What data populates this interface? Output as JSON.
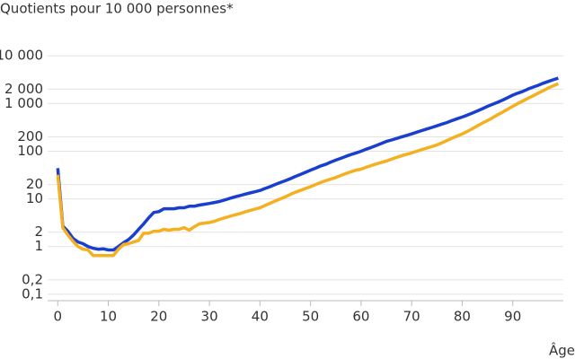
{
  "chart_data": {
    "type": "line",
    "title": "Quotients pour 10 000 personnes*",
    "x_label": "Âge",
    "x": [
      0,
      1,
      2,
      3,
      4,
      5,
      6,
      7,
      8,
      9,
      10,
      11,
      12,
      13,
      14,
      15,
      16,
      17,
      18,
      19,
      20,
      21,
      22,
      23,
      24,
      25,
      26,
      27,
      28,
      29,
      30,
      31,
      32,
      33,
      34,
      35,
      36,
      37,
      38,
      39,
      40,
      41,
      42,
      43,
      44,
      45,
      46,
      47,
      48,
      49,
      50,
      51,
      52,
      53,
      54,
      55,
      56,
      57,
      58,
      59,
      60,
      61,
      62,
      63,
      64,
      65,
      66,
      67,
      68,
      69,
      70,
      71,
      72,
      73,
      74,
      75,
      76,
      77,
      78,
      79,
      80,
      81,
      82,
      83,
      84,
      85,
      86,
      87,
      88,
      89,
      90,
      91,
      92,
      93,
      94,
      95,
      96,
      97,
      98,
      99
    ],
    "series": [
      {
        "color": "#1a3fcf",
        "values": [
          44,
          2.7,
          2.1,
          1.5,
          1.25,
          1.15,
          1,
          0.92,
          0.88,
          0.9,
          0.85,
          0.85,
          1,
          1.2,
          1.4,
          1.75,
          2.3,
          3,
          4,
          5.2,
          5.4,
          6.2,
          6.2,
          6.2,
          6.5,
          6.5,
          7,
          7,
          7.4,
          7.7,
          8,
          8.4,
          8.8,
          9.5,
          10.2,
          11,
          11.7,
          12.5,
          13.3,
          14.1,
          15,
          16.5,
          18,
          20,
          22,
          24,
          26.5,
          29.5,
          32.5,
          36,
          40,
          44,
          49,
          53,
          59,
          65,
          71,
          78,
          85,
          92,
          100,
          110,
          120,
          132,
          145,
          160,
          172,
          185,
          199,
          214,
          230,
          250,
          270,
          292,
          315,
          340,
          370,
          400,
          440,
          480,
          520,
          570,
          630,
          700,
          780,
          870,
          960,
          1060,
          1180,
          1330,
          1500,
          1650,
          1800,
          2000,
          2200,
          2400,
          2650,
          2900,
          3150,
          3400
        ]
      },
      {
        "color": "#f5b021",
        "values": [
          32,
          2.5,
          1.75,
          1.3,
          1,
          0.88,
          0.85,
          0.65,
          0.65,
          0.65,
          0.65,
          0.65,
          0.88,
          1.1,
          1.15,
          1.25,
          1.35,
          1.9,
          1.9,
          2.1,
          2.1,
          2.3,
          2.2,
          2.3,
          2.3,
          2.5,
          2.2,
          2.6,
          3,
          3.1,
          3.2,
          3.4,
          3.7,
          4,
          4.3,
          4.6,
          4.9,
          5.3,
          5.7,
          6.1,
          6.5,
          7.3,
          8.1,
          9,
          10,
          11,
          12.4,
          13.8,
          15,
          16.5,
          18,
          20,
          22,
          24,
          26,
          28,
          31,
          34,
          37,
          40,
          42,
          46,
          50,
          54,
          58,
          62,
          68,
          74,
          80,
          86,
          92,
          100,
          108,
          116,
          125,
          135,
          150,
          168,
          188,
          208,
          230,
          260,
          295,
          340,
          390,
          440,
          500,
          580,
          660,
          760,
          870,
          1000,
          1130,
          1280,
          1450,
          1650,
          1850,
          2100,
          2350,
          2600
        ]
      }
    ],
    "xlim": [
      -2,
      100
    ],
    "xticks": [
      0,
      10,
      20,
      30,
      40,
      50,
      60,
      70,
      80,
      90
    ],
    "ylim": [
      0.08,
      12000
    ],
    "y_scale": "log",
    "yticks": [
      {
        "value": 10000,
        "label": "10 000"
      },
      {
        "value": 2000,
        "label": "2 000"
      },
      {
        "value": 1000,
        "label": "1 000"
      },
      200,
      100,
      20,
      10,
      2,
      1,
      {
        "value": 0.2,
        "label": "0,2"
      },
      {
        "value": 0.1,
        "label": "0,1"
      }
    ],
    "grid": true
  }
}
